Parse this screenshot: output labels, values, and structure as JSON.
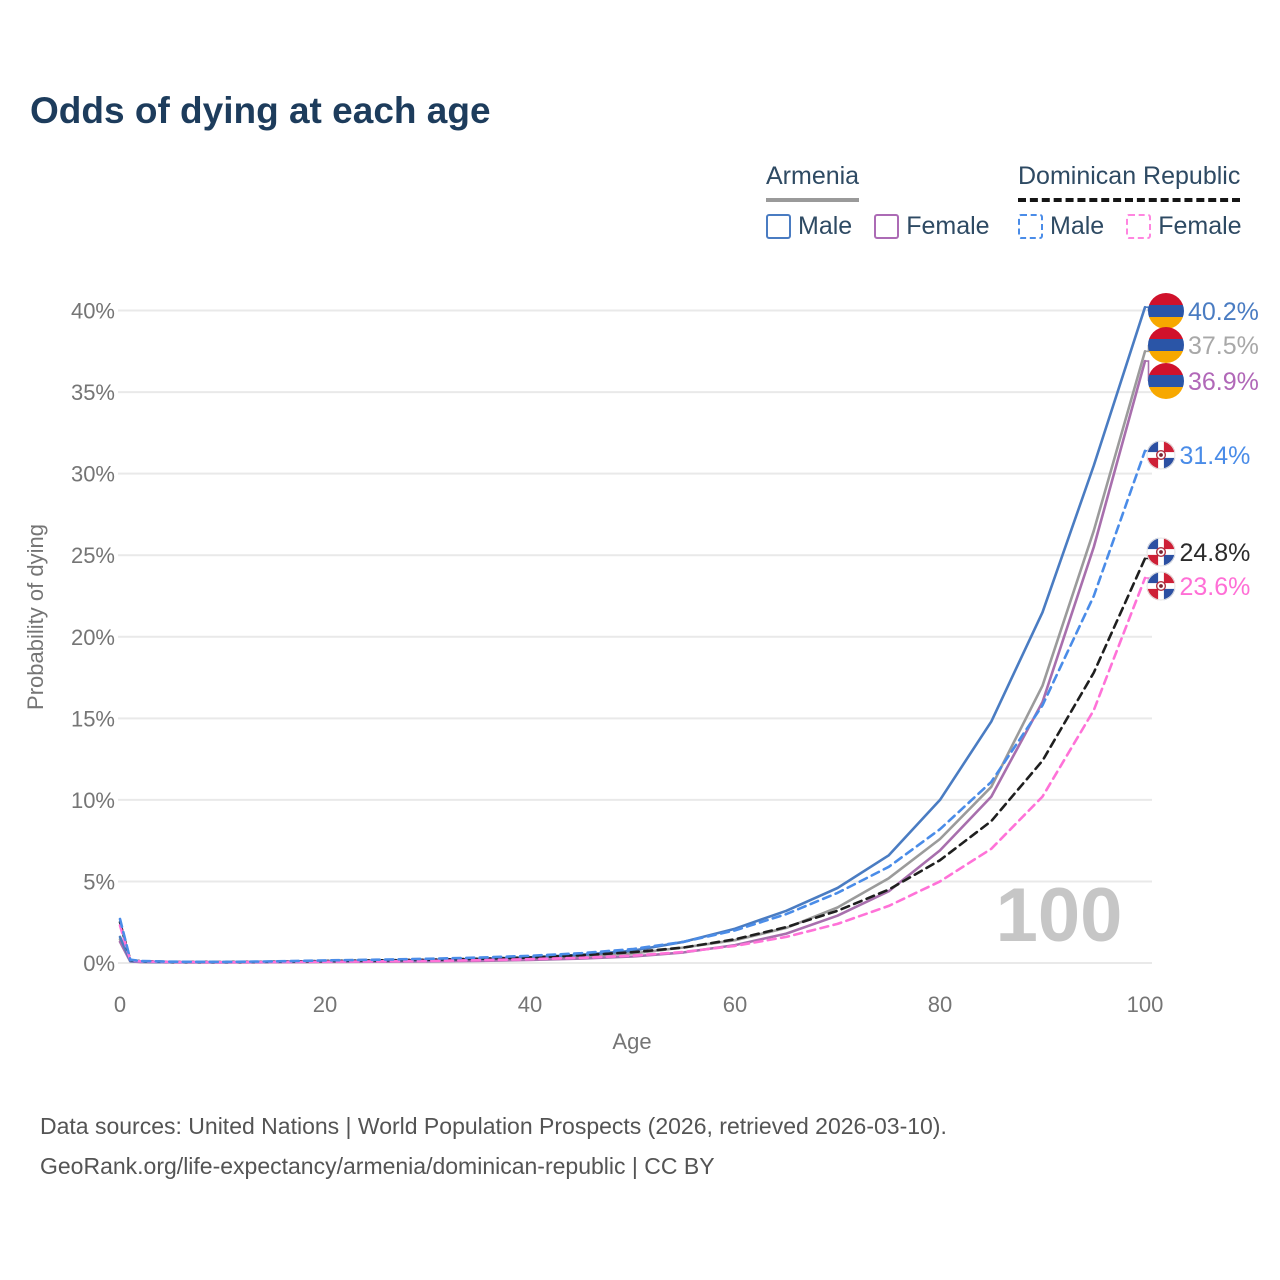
{
  "header": {
    "title": "Odds of dying at each age"
  },
  "legend": {
    "groups": [
      {
        "label": "Armenia",
        "line_style": "solid",
        "underline_color": "#9a9a9a",
        "items": [
          {
            "label": "Male",
            "color": "#4a7cc2",
            "dashed": false
          },
          {
            "label": "Female",
            "color": "#ac6bb5",
            "dashed": false
          }
        ]
      },
      {
        "label": "Dominican Republic",
        "line_style": "dashed",
        "underline_color": "#161616",
        "items": [
          {
            "label": "Male",
            "color": "#4a8ce8",
            "dashed": true
          },
          {
            "label": "Female",
            "color": "#ff85e0",
            "dashed": true
          }
        ]
      }
    ]
  },
  "chart_data": {
    "type": "line",
    "title": "Odds of dying at each age",
    "xlabel": "Age",
    "ylabel": "Probability of dying",
    "watermark": "100",
    "xlim": [
      0,
      100
    ],
    "ylim": [
      0,
      40
    ],
    "grid": "horizontal",
    "legend_position": "top-right",
    "xticks": [
      0,
      20,
      40,
      60,
      80,
      100
    ],
    "ytick_values": [
      0,
      5,
      10,
      15,
      20,
      25,
      30,
      35,
      40
    ],
    "ytick_labels": [
      "0%",
      "5%",
      "10%",
      "15%",
      "20%",
      "25%",
      "30%",
      "35%",
      "40%"
    ],
    "x": [
      0,
      1,
      2,
      5,
      10,
      15,
      20,
      25,
      30,
      35,
      40,
      45,
      50,
      55,
      60,
      65,
      70,
      75,
      80,
      85,
      90,
      95,
      100
    ],
    "series": [
      {
        "id": "armenia_male",
        "name": "Armenia Male",
        "country": "Armenia",
        "sex": "male",
        "color": "#4a7cc2",
        "label_color": "#4a7cc2",
        "dashed": false,
        "flag": "armenia",
        "end_label": "40.2%",
        "end_value": 40.2,
        "values": [
          1.6,
          0.12,
          0.08,
          0.05,
          0.05,
          0.08,
          0.12,
          0.15,
          0.18,
          0.25,
          0.35,
          0.5,
          0.75,
          1.3,
          2.1,
          3.2,
          4.6,
          6.6,
          10.0,
          14.8,
          21.5,
          30.5,
          40.2
        ]
      },
      {
        "id": "armenia_both",
        "name": "Armenia",
        "country": "Armenia",
        "sex": "both",
        "color": "#9b9b9b",
        "label_color": "#a8a8a8",
        "dashed": false,
        "flag": "armenia",
        "end_label": "37.5%",
        "end_value": 37.5,
        "values": [
          1.45,
          0.11,
          0.07,
          0.05,
          0.04,
          0.06,
          0.09,
          0.12,
          0.15,
          0.2,
          0.28,
          0.4,
          0.58,
          0.95,
          1.4,
          2.15,
          3.4,
          5.2,
          7.6,
          10.8,
          17.0,
          26.5,
          37.5
        ]
      },
      {
        "id": "armenia_female",
        "name": "Armenia Female",
        "country": "Armenia",
        "sex": "female",
        "color": "#a86fad",
        "label_color": "#b168b8",
        "dashed": false,
        "flag": "armenia",
        "end_label": "36.9%",
        "end_value": 36.9,
        "values": [
          1.3,
          0.1,
          0.06,
          0.04,
          0.035,
          0.05,
          0.06,
          0.08,
          0.1,
          0.13,
          0.19,
          0.27,
          0.4,
          0.65,
          1.1,
          1.8,
          2.9,
          4.4,
          6.9,
          10.2,
          16.0,
          25.5,
          36.9
        ]
      },
      {
        "id": "dr_male",
        "name": "Dominican Republic Male",
        "country": "Dominican Republic",
        "sex": "male",
        "color": "#4a8ce8",
        "label_color": "#4a8ce8",
        "dashed": true,
        "flag": "dominican-republic",
        "end_label": "31.4%",
        "end_value": 31.4,
        "values": [
          2.7,
          0.2,
          0.12,
          0.08,
          0.07,
          0.1,
          0.16,
          0.2,
          0.26,
          0.33,
          0.44,
          0.6,
          0.85,
          1.3,
          2.0,
          3.0,
          4.3,
          5.9,
          8.2,
          11.1,
          15.8,
          22.5,
          31.4
        ]
      },
      {
        "id": "dr_both",
        "name": "Dominican Republic",
        "country": "Dominican Republic",
        "sex": "both",
        "color": "#1f1f1f",
        "label_color": "#2b2b2b",
        "dashed": true,
        "flag": "dominican-republic",
        "end_label": "24.8%",
        "end_value": 24.8,
        "values": [
          2.5,
          0.18,
          0.11,
          0.07,
          0.06,
          0.08,
          0.12,
          0.16,
          0.2,
          0.26,
          0.34,
          0.47,
          0.66,
          0.95,
          1.45,
          2.2,
          3.2,
          4.5,
          6.3,
          8.7,
          12.4,
          17.8,
          24.8
        ]
      },
      {
        "id": "dr_female",
        "name": "Dominican Republic Female",
        "country": "Dominican Republic",
        "sex": "female",
        "color": "#ff72d8",
        "label_color": "#ff6fd6",
        "dashed": true,
        "flag": "dominican-republic",
        "end_label": "23.6%",
        "end_value": 23.6,
        "values": [
          2.3,
          0.16,
          0.1,
          0.06,
          0.05,
          0.06,
          0.08,
          0.1,
          0.13,
          0.17,
          0.23,
          0.32,
          0.45,
          0.68,
          1.05,
          1.6,
          2.4,
          3.5,
          5.0,
          7.0,
          10.2,
          15.5,
          23.6
        ]
      }
    ],
    "flag_colors": {
      "armenia": {
        "red": "#d0112b",
        "blue": "#2a55a7",
        "orange": "#f7a800"
      },
      "dominican_republic": {
        "blue": "#2b4fa2",
        "red": "#ce1f36",
        "white": "#ffffff"
      }
    }
  },
  "style_colors": {
    "title": "#1d3c5c",
    "axis_text": "#757575",
    "grid": "#e9e9e9",
    "watermark": "#c6c6c6",
    "footer_text": "#545454",
    "legend_text": "#2e4a63"
  },
  "footer": {
    "line1": "Data sources: United Nations | World Population Prospects (2026, retrieved 2026-03-10).",
    "line2": "GeoRank.org/life-expectancy/armenia/dominican-republic | CC BY"
  }
}
